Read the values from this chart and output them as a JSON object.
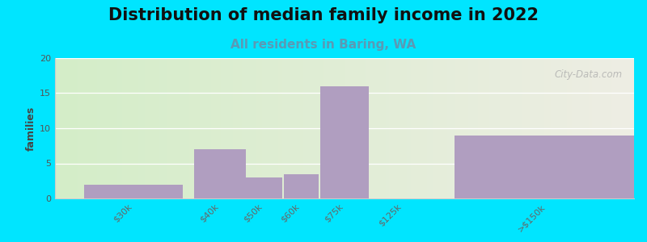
{
  "title": "Distribution of median family income in 2022",
  "subtitle": "All residents in Baring, WA",
  "ylabel": "families",
  "categories": [
    "$30k",
    "$40k",
    "$50k",
    "$60k",
    "$75k",
    "$125k",
    ">$150k"
  ],
  "values": [
    2,
    7,
    3,
    3.5,
    16,
    0,
    9
  ],
  "bar_color": "#b09ec0",
  "background_outer": "#00e5ff",
  "plot_bg_left": "#d4edc8",
  "plot_bg_right": "#eeeee4",
  "ylim": [
    0,
    20
  ],
  "yticks": [
    0,
    5,
    10,
    15,
    20
  ],
  "title_fontsize": 15,
  "subtitle_fontsize": 11,
  "subtitle_color": "#5a9ab5",
  "watermark": "City-Data.com"
}
